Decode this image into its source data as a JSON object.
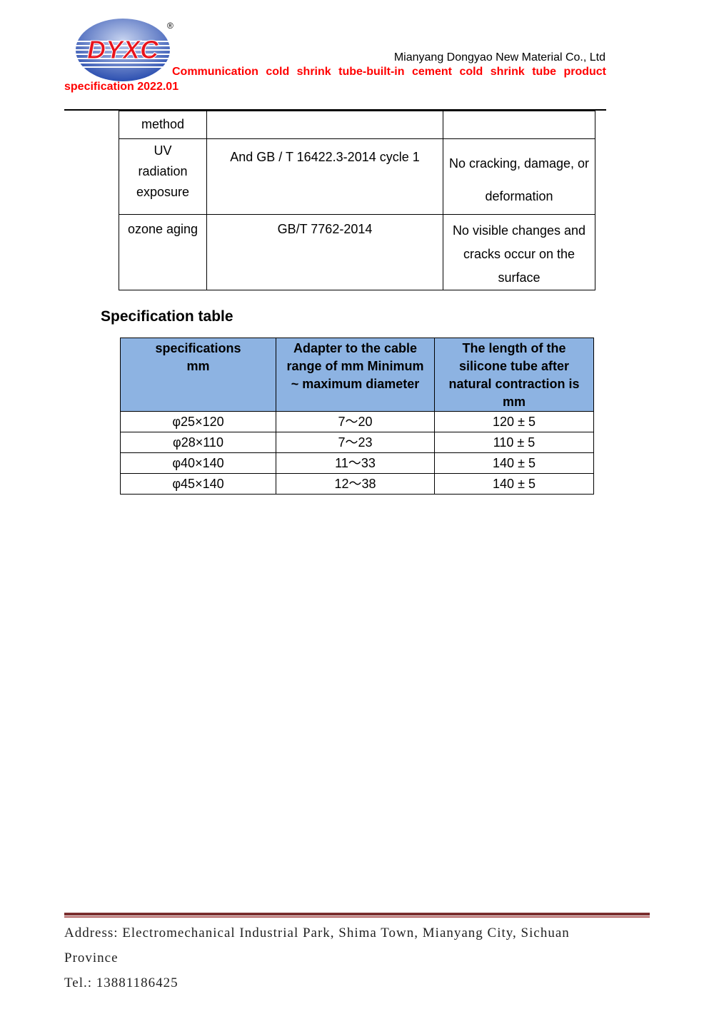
{
  "header": {
    "logo_text": "DYXC",
    "company": "Mianyang Dongyao New Material Co., Ltd",
    "title_line1": [
      "Communication",
      "cold",
      "shrink",
      "tube-built-in",
      "cement",
      "cold",
      "shrink",
      "tube",
      "product"
    ],
    "title_line2": "specification 2022.01"
  },
  "test_table": {
    "rows": [
      [
        "method",
        "",
        ""
      ],
      [
        "UV radiation exposure",
        "And GB / T 16422.3-2014 cycle 1",
        "No cracking, damage, or deformation"
      ],
      [
        "ozone aging",
        "GB/T 7762-2014",
        "No visible changes and cracks occur on the surface"
      ]
    ]
  },
  "spec": {
    "heading": "Specification table",
    "columns": [
      "specifications mm",
      "Adapter to the cable range of mm Minimum ~ maximum diameter",
      "The length of the silicone tube after natural contraction is mm"
    ],
    "rows": [
      [
        "φ25×120",
        "7～20",
        "120 ± 5"
      ],
      [
        "φ28×110",
        "7～23",
        "110 ± 5"
      ],
      [
        "φ40×140",
        "11～33",
        "140 ± 5"
      ],
      [
        "φ45×140",
        "12～38",
        "140 ± 5"
      ]
    ]
  },
  "footer": {
    "address_line1": "Address: Electromechanical Industrial Park, Shima Town, Mianyang City, Sichuan",
    "address_line2": "Province",
    "tel": "Tel.: 13881186425"
  },
  "colors": {
    "title_red": "#ff0000",
    "header_blue": "#8db3e2",
    "footer_rule": "#7a2e2e"
  }
}
